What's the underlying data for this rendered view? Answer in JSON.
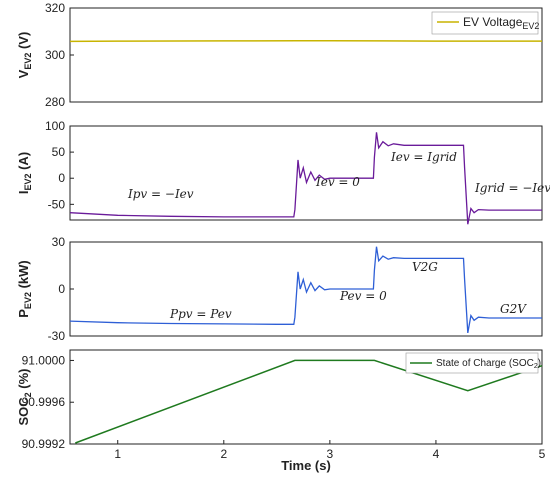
{
  "chart_data": [
    {
      "type": "line",
      "ylabel": "V",
      "ylabel_sub": "EV2",
      "ylabel_unit": " (V)",
      "ylim": [
        280,
        320
      ],
      "yticks": [
        280,
        300,
        320
      ],
      "xlim": [
        0.55,
        5
      ],
      "legend": {
        "text": "EV Voltage",
        "sub": "EV2",
        "placement": "top-right"
      },
      "series": [
        {
          "name": "EV Voltage EV2",
          "color": "#c8b400",
          "x": [
            0.55,
            1,
            2,
            2.7,
            3,
            3.5,
            4,
            4.5,
            5
          ],
          "y": [
            305.8,
            305.9,
            306.0,
            306.1,
            306.1,
            306.0,
            305.9,
            305.9,
            305.9
          ]
        }
      ]
    },
    {
      "type": "line",
      "ylabel": "I",
      "ylabel_sub": "EV2",
      "ylabel_unit": " (A)",
      "ylim": [
        -80,
        100
      ],
      "yticks": [
        -50,
        0,
        50,
        100
      ],
      "xlim": [
        0.55,
        5
      ],
      "series": [
        {
          "name": "",
          "color": "#6a1b9a",
          "x": [
            0.55,
            1,
            1.5,
            2,
            2.5,
            2.66,
            2.67,
            2.7,
            2.72,
            2.75,
            2.78,
            2.82,
            2.86,
            2.9,
            2.95,
            3,
            3.1,
            3.41,
            3.42,
            3.44,
            3.46,
            3.5,
            3.55,
            3.6,
            3.7,
            4.26,
            4.27,
            4.3,
            4.33,
            4.36,
            4.4,
            4.5,
            4.7,
            5
          ],
          "y": [
            -66,
            -71,
            -73,
            -74,
            -74,
            -74,
            -60,
            35,
            0,
            20,
            -8,
            12,
            -4,
            6,
            -2,
            0,
            0,
            0,
            40,
            88,
            58,
            70,
            62,
            66,
            63,
            63,
            20,
            -88,
            -58,
            -66,
            -60,
            -61,
            -61,
            -61
          ]
        }
      ],
      "annotations": [
        "Ipv = −Iev",
        "Iev = 0",
        "Iev = Igrid",
        "Igrid = −Iev"
      ]
    },
    {
      "type": "line",
      "ylabel": "P",
      "ylabel_sub": "EV2",
      "ylabel_unit": " (kW)",
      "ylim": [
        -30,
        30
      ],
      "yticks": [
        -30,
        0,
        30
      ],
      "xlim": [
        0.55,
        5
      ],
      "series": [
        {
          "name": "",
          "color": "#2e5fd6",
          "x": [
            0.55,
            1,
            1.5,
            2,
            2.5,
            2.66,
            2.67,
            2.7,
            2.72,
            2.75,
            2.78,
            2.82,
            2.86,
            2.9,
            2.95,
            3,
            3.1,
            3.41,
            3.42,
            3.44,
            3.46,
            3.5,
            3.55,
            3.6,
            3.7,
            4.26,
            4.27,
            4.3,
            4.33,
            4.36,
            4.4,
            4.5,
            4.7,
            5
          ],
          "y": [
            -20.5,
            -21.5,
            -22,
            -22.3,
            -22.5,
            -22.5,
            -18,
            11,
            0,
            6,
            -2,
            4,
            -1,
            2,
            -0.5,
            0,
            0,
            0,
            12,
            27,
            18,
            21,
            19,
            20,
            19.5,
            19.5,
            6,
            -28,
            -17,
            -20,
            -18,
            -18.5,
            -18.5,
            -18.5
          ]
        }
      ],
      "annotations": [
        "Ppv = Pev",
        "Pev = 0",
        "V2G",
        "G2V"
      ]
    },
    {
      "type": "line",
      "ylabel": "SOC",
      "ylabel_sub": "2",
      "ylabel_unit": " (%)",
      "ylim": [
        90.9992,
        91.0001
      ],
      "yticks": [
        90.9992,
        90.9996,
        91.0
      ],
      "ytick_labels": [
        "90.9992",
        "90.9996",
        "91.0000"
      ],
      "xlim": [
        0.55,
        5
      ],
      "xticks": [
        1,
        2,
        3,
        4,
        5
      ],
      "xlabel": "Time (s)",
      "legend": {
        "text": "State of Charge (SOC",
        "sub": "2",
        "tail": ")",
        "placement": "top-right"
      },
      "series": [
        {
          "name": "State of Charge (SOC2)",
          "color": "#1f7a1f",
          "x": [
            0.6,
            2.67,
            3.42,
            4.3,
            5
          ],
          "y": [
            90.99921,
            91.0,
            91.0,
            90.99971,
            90.99995
          ]
        }
      ]
    }
  ]
}
